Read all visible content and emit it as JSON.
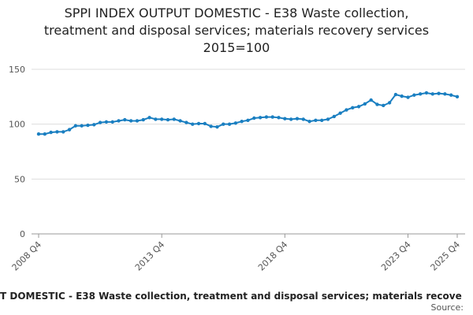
{
  "chart_data": {
    "type": "line",
    "title": [
      "SPPI INDEX OUTPUT DOMESTIC - E38 Waste collection,",
      "treatment and disposal services; materials recovery services",
      "2015=100"
    ],
    "x_label": "T DOMESTIC - E38 Waste collection, treatment and disposal services; materials recove",
    "source": "Source:",
    "categories": [
      "2008 Q4",
      null,
      null,
      null,
      null,
      null,
      null,
      null,
      null,
      null,
      null,
      null,
      null,
      null,
      null,
      null,
      null,
      null,
      null,
      null,
      "2013 Q4",
      null,
      null,
      null,
      null,
      null,
      null,
      null,
      null,
      null,
      null,
      null,
      null,
      null,
      null,
      null,
      null,
      null,
      null,
      null,
      "2018 Q4",
      null,
      null,
      null,
      null,
      null,
      null,
      null,
      null,
      null,
      null,
      null,
      null,
      null,
      null,
      null,
      null,
      null,
      null,
      null,
      "2023 Q4",
      null,
      null,
      null,
      null,
      null,
      null,
      null,
      "2025 Q4"
    ],
    "series": [
      {
        "name": "SPPI",
        "color": "#1a7fc1",
        "values": [
          91,
          91,
          92.5,
          93,
          93,
          95,
          98.5,
          98.5,
          99,
          99.5,
          101.5,
          102,
          102,
          103,
          104,
          103,
          103,
          104,
          106,
          104.5,
          104.5,
          104,
          104.5,
          103,
          101.5,
          100,
          100.5,
          100.5,
          98,
          97.5,
          100,
          100,
          101,
          102.5,
          103.5,
          105.5,
          106,
          106.5,
          106.5,
          106,
          105,
          104.5,
          105,
          104.5,
          102.5,
          103.5,
          103.5,
          104.5,
          107,
          110,
          113,
          115,
          116,
          118.5,
          122,
          118,
          117,
          119.5,
          127,
          125.5,
          124.5,
          126.5,
          127.5,
          128.5,
          127.5,
          128,
          127.5,
          126.5,
          125
        ]
      }
    ],
    "ylim": [
      0,
      150
    ],
    "yticks": [
      0,
      50,
      100,
      150
    ],
    "grid": true
  }
}
